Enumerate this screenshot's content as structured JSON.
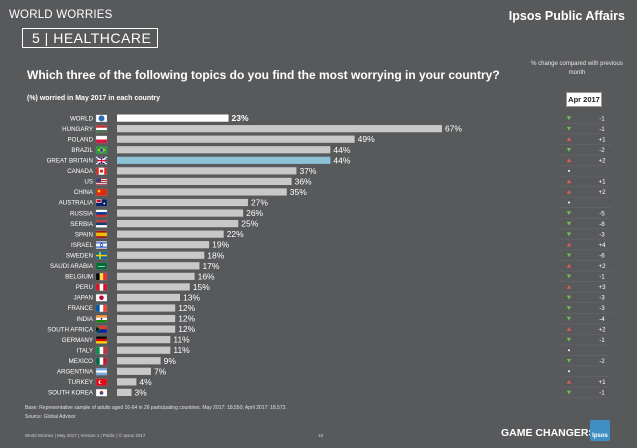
{
  "header": {
    "section": "WORLD WORRIES",
    "brand": "Ipsos Public Affairs",
    "subsection": "5 | HEALTHCARE"
  },
  "question": "Which three of the following topics do you find the most worrying in your country?",
  "change_note": "% change compared with previous month",
  "base_label": "(%) worried in May 2017 in each country",
  "period_label": "Apr 2017",
  "base_note": "Base: Representative sample of adults aged 16-64 in 26 participating countries. May 2017: 18,550; April 2017: 18,573.",
  "source_note": "Source: Global Advisor",
  "footer": "World Worries | May 2017 | Version 1 | Public | © Ipsos 2017",
  "page_number": "18",
  "tagline": "GAME CHANGERS",
  "logo_text": "Ipsos",
  "colors": {
    "background": "#58595b",
    "bar_default": "#c8c8c8",
    "bar_world": "#ffffff",
    "bar_highlight": "#8cc2d6",
    "label_highlight": "#8cc2d6",
    "up": "#e05a5a",
    "down": "#6fbf4a",
    "same": "#ffffff"
  },
  "chart_data": {
    "type": "bar",
    "orientation": "horizontal",
    "value_suffix": "%",
    "categories": [
      "WORLD",
      "HUNGARY",
      "POLAND",
      "BRAZIL",
      "GREAT BRITAIN",
      "CANADA",
      "US",
      "CHINA",
      "AUSTRALIA",
      "RUSSIA",
      "SERBIA",
      "SPAIN",
      "ISRAEL",
      "SWEDEN",
      "SAUDI ARABIA",
      "BELGIUM",
      "PERU",
      "JAPAN",
      "FRANCE",
      "INDIA",
      "SOUTH AFRICA",
      "GERMANY",
      "ITALY",
      "MEXICO",
      "ARGENTINA",
      "TURKEY",
      "SOUTH KOREA"
    ],
    "values": [
      23,
      67,
      49,
      44,
      44,
      37,
      36,
      35,
      27,
      26,
      25,
      22,
      19,
      18,
      17,
      16,
      15,
      13,
      12,
      12,
      12,
      11,
      11,
      9,
      7,
      4,
      3
    ],
    "change_vs_previous_month": [
      "-1",
      "-1",
      "+1",
      "-2",
      "+2",
      "",
      "+1",
      "+2",
      "",
      "-5",
      "-8",
      "-3",
      "+4",
      "-6",
      "+2",
      "-1",
      "+3",
      "-3",
      "-3",
      "-4",
      "+2",
      "-1",
      "",
      "-2",
      "",
      "+1",
      "-1"
    ],
    "change_direction": [
      "down",
      "down",
      "up",
      "down",
      "up",
      "same",
      "up",
      "up",
      "same",
      "down",
      "down",
      "down",
      "up",
      "down",
      "up",
      "down",
      "up",
      "down",
      "down",
      "down",
      "up",
      "down",
      "same",
      "down",
      "same",
      "up",
      "down"
    ],
    "highlight": "GREAT BRITAIN",
    "xlim": [
      0,
      100
    ]
  },
  "flags": [
    "world",
    "hungary",
    "poland",
    "brazil",
    "great-britain",
    "canada",
    "us",
    "china",
    "australia",
    "russia",
    "serbia",
    "spain",
    "israel",
    "sweden",
    "saudi-arabia",
    "belgium",
    "peru",
    "japan",
    "france",
    "india",
    "south-africa",
    "germany",
    "italy",
    "mexico",
    "argentina",
    "turkey",
    "south-korea"
  ]
}
